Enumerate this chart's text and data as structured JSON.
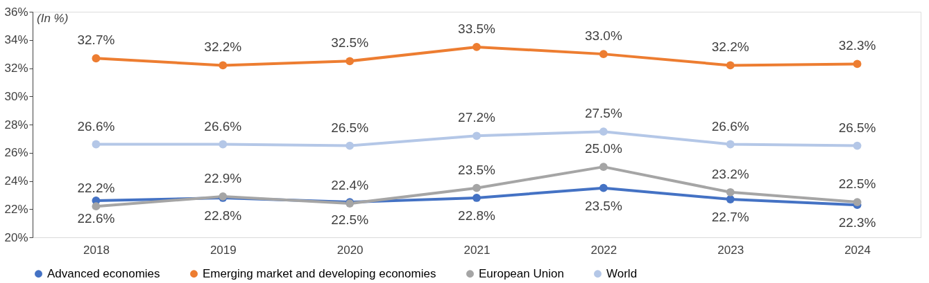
{
  "chart_data": {
    "type": "line",
    "annotations": [
      "(In %)"
    ],
    "categories": [
      "2018",
      "2019",
      "2020",
      "2021",
      "2022",
      "2023",
      "2024"
    ],
    "series": [
      {
        "name": "Advanced economies",
        "color": "#4472c4",
        "values": [
          22.6,
          22.8,
          22.5,
          22.8,
          23.5,
          22.7,
          22.3
        ],
        "value_labels": [
          "22.6%",
          "22.8%",
          "22.5%",
          "22.8%",
          "23.5%",
          "22.7%",
          "22.3%"
        ]
      },
      {
        "name": "Emerging market and developing economies",
        "color": "#ed7d31",
        "values": [
          32.7,
          32.2,
          32.5,
          33.5,
          33.0,
          32.2,
          32.3
        ],
        "value_labels": [
          "32.7%",
          "32.2%",
          "32.5%",
          "33.5%",
          "33.0%",
          "32.2%",
          "32.3%"
        ]
      },
      {
        "name": "European Union",
        "color": "#a5a5a5",
        "values": [
          22.2,
          22.9,
          22.4,
          23.5,
          25.0,
          23.2,
          22.5
        ],
        "value_labels": [
          "22.2%",
          "22.9%",
          "22.4%",
          "23.5%",
          "25.0%",
          "23.2%",
          "22.5%"
        ]
      },
      {
        "name": "World",
        "color": "#b4c7e7",
        "values": [
          26.6,
          26.6,
          26.5,
          27.2,
          27.5,
          26.6,
          26.5
        ],
        "value_labels": [
          "26.6%",
          "26.6%",
          "26.5%",
          "27.2%",
          "27.5%",
          "26.6%",
          "26.5%"
        ]
      }
    ],
    "ylim": [
      20,
      36
    ],
    "yticks": [
      {
        "value": 20,
        "label": "20%"
      },
      {
        "value": 22,
        "label": "22%"
      },
      {
        "value": 24,
        "label": "24%"
      },
      {
        "value": 26,
        "label": "26%"
      },
      {
        "value": 28,
        "label": "28%"
      },
      {
        "value": 30,
        "label": "30%"
      },
      {
        "value": 32,
        "label": "32%"
      },
      {
        "value": 34,
        "label": "34%"
      },
      {
        "value": 36,
        "label": "36%"
      }
    ],
    "grid": false,
    "legend": "bottom",
    "marker": "circle",
    "line_style": "solid"
  }
}
